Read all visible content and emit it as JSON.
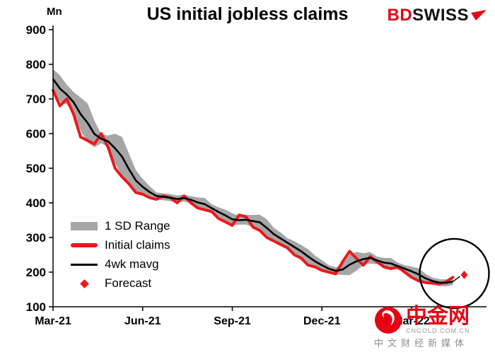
{
  "header": {
    "title": "US initial jobless claims",
    "unit_label": "Mn",
    "brand": {
      "bd": "BD",
      "swiss": "SWISS"
    }
  },
  "watermark": {
    "name": "中金网",
    "domain": "CNGOLD.COM.CN",
    "tagline": "中文财经新媒体"
  },
  "chart_data": {
    "type": "line",
    "title": "US initial jobless claims",
    "ylabel": "Mn",
    "ylim": [
      100,
      900
    ],
    "ytick_step": 100,
    "xtick_labels": [
      "Mar-21",
      "Jun-21",
      "Sep-21",
      "Dec-21",
      "Mar-22"
    ],
    "xtick_weeks": [
      0,
      13,
      26,
      39,
      52
    ],
    "weeks_total": 60,
    "legend": [
      "1 SD Range",
      "Initial claims",
      "4wk mavg",
      "Forecast"
    ],
    "grid": false,
    "legend_position": "inside-left-bottom",
    "initial_claims": [
      725,
      680,
      700,
      655,
      590,
      580,
      570,
      600,
      560,
      500,
      475,
      455,
      430,
      425,
      415,
      410,
      420,
      415,
      400,
      420,
      400,
      385,
      380,
      375,
      355,
      345,
      335,
      365,
      360,
      330,
      320,
      300,
      290,
      280,
      270,
      250,
      240,
      220,
      215,
      205,
      200,
      195,
      230,
      260,
      240,
      220,
      245,
      230,
      215,
      210,
      215,
      200,
      185,
      175,
      170,
      168,
      166,
      172,
      185
    ],
    "mavg_window": 4,
    "mavg_seed": [
      790,
      770,
      745
    ],
    "band_min_halfwidth": 10,
    "forecast_value": 192,
    "colors": {
      "claims": "#e8191c",
      "mavg": "#000000",
      "band": "#a6a6a6",
      "forecast": "#e8191c"
    },
    "annotation": "circle-around-latest-and-forecast"
  }
}
